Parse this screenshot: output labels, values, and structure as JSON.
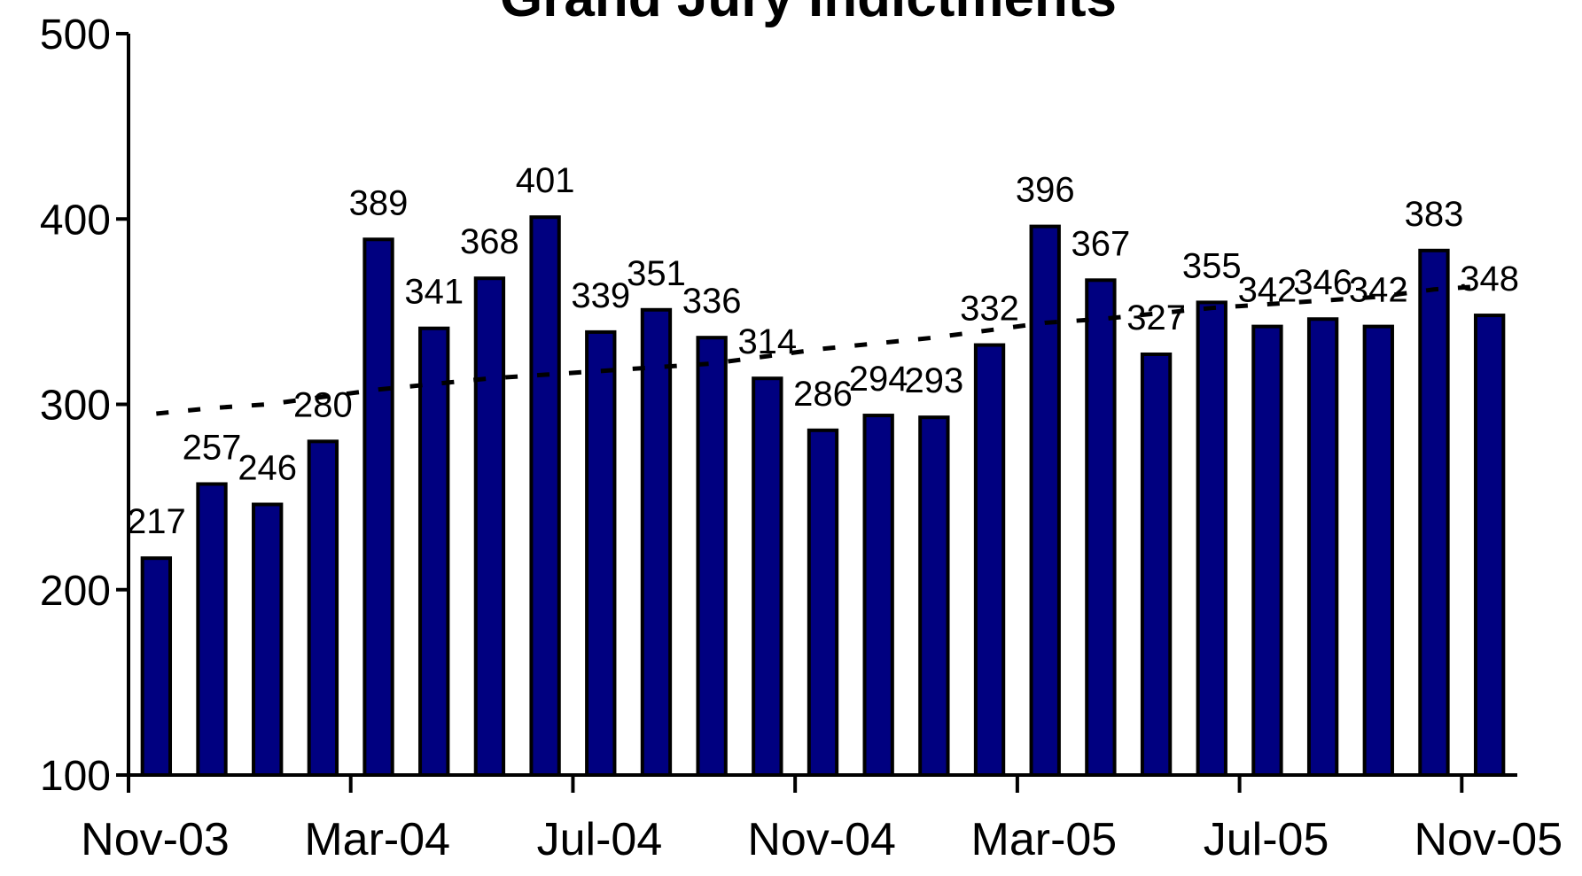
{
  "chart_data": {
    "type": "bar",
    "title": "Grand Jury Indictments",
    "categories": [
      "Nov-03",
      null,
      null,
      null,
      "Mar-04",
      null,
      null,
      null,
      "Jul-04",
      null,
      null,
      null,
      "Nov-04",
      null,
      null,
      null,
      "Mar-05",
      null,
      null,
      null,
      "Jul-05",
      null,
      null,
      null,
      "Nov-05"
    ],
    "series": [
      {
        "type": "bar",
        "color": "#000080",
        "values": [
          217,
          257,
          246,
          280,
          389,
          341,
          368,
          401,
          339,
          351,
          336,
          314,
          286,
          294,
          293,
          332,
          396,
          367,
          327,
          355,
          342,
          346,
          342,
          383,
          348
        ]
      },
      {
        "type": "line",
        "color": "#000000",
        "dashed": true,
        "values": [
          295,
          298,
          300,
          304,
          308,
          311,
          314,
          316,
          318,
          320,
          322,
          326,
          330,
          333,
          336,
          340,
          344,
          346,
          349,
          352,
          354,
          356,
          358,
          362,
          364
        ]
      }
    ],
    "ylim": [
      100,
      500
    ],
    "yticks": [
      100,
      200,
      300,
      400,
      500
    ],
    "grid": false
  }
}
